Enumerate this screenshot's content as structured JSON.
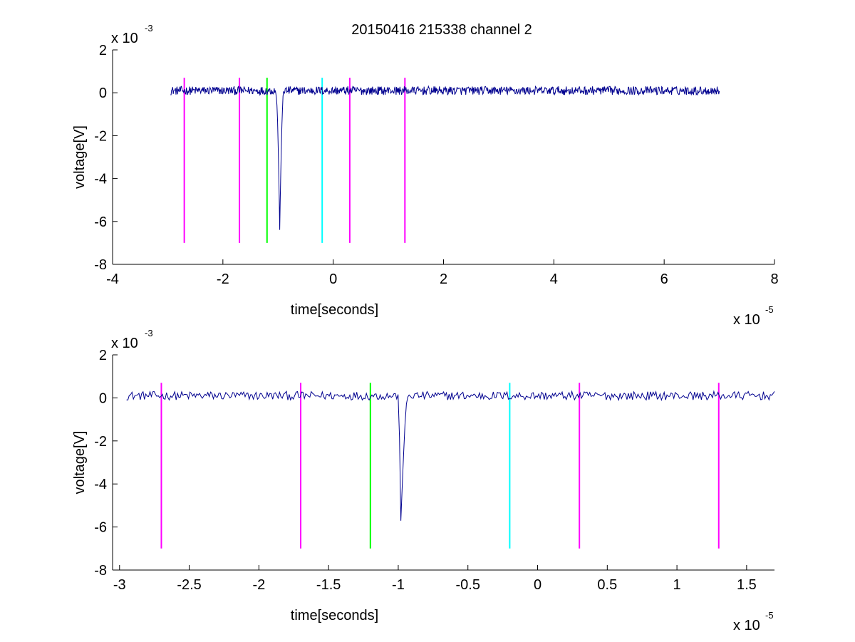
{
  "figure": {
    "title": "20150416 215338 channel 2"
  },
  "colors": {
    "signal": "#00008f",
    "magenta": "#ff00ff",
    "green": "#00ff00",
    "cyan": "#00ffff"
  },
  "chart_data": [
    {
      "type": "line",
      "title": "20150416 215338 channel 2",
      "xlabel": "time[seconds]",
      "ylabel": "voltage[V]",
      "x_exponent": "x 10",
      "x_exponent_power": "-5",
      "y_exponent": "x 10",
      "y_exponent_power": "-3",
      "xlim": [
        -4,
        8
      ],
      "ylim": [
        -8,
        2
      ],
      "xticks": [
        -4,
        -2,
        0,
        2,
        4,
        6,
        8
      ],
      "xtick_labels": [
        "-4",
        "-2",
        "0",
        "2",
        "4",
        "6",
        "8"
      ],
      "yticks": [
        2,
        0,
        -2,
        -4,
        -6,
        -8
      ],
      "ytick_labels": [
        "2",
        "0",
        "-2",
        "-4",
        "-6",
        "-8"
      ],
      "grid": false,
      "series": [
        {
          "color": "#00008f",
          "baseline": 0.1,
          "noise_amplitude": 0.2,
          "x_range": [
            -2.95,
            7.0
          ],
          "spike": {
            "start": -1.05,
            "min_x": -0.97,
            "min_y": -6.4,
            "end": -0.9
          }
        }
      ],
      "vertical_markers": [
        {
          "x": -2.7,
          "y_from": -7,
          "y_to": 0.7,
          "color": "#ff00ff"
        },
        {
          "x": -1.7,
          "y_from": -7,
          "y_to": 0.7,
          "color": "#ff00ff"
        },
        {
          "x": -1.2,
          "y_from": -7,
          "y_to": 0.7,
          "color": "#00ff00"
        },
        {
          "x": -0.2,
          "y_from": -7,
          "y_to": 0.7,
          "color": "#00ffff"
        },
        {
          "x": 0.3,
          "y_from": -7,
          "y_to": 0.7,
          "color": "#ff00ff"
        },
        {
          "x": 1.3,
          "y_from": -7,
          "y_to": 0.7,
          "color": "#ff00ff"
        }
      ]
    },
    {
      "type": "line",
      "title": "",
      "xlabel": "time[seconds]",
      "ylabel": "voltage[V]",
      "x_exponent": "x 10",
      "x_exponent_power": "-5",
      "y_exponent": "x 10",
      "y_exponent_power": "-3",
      "xlim": [
        -3.05,
        1.7
      ],
      "ylim": [
        -8,
        2
      ],
      "xticks": [
        -3,
        -2.5,
        -2,
        -1.5,
        -1,
        -0.5,
        0,
        0.5,
        1,
        1.5
      ],
      "xtick_labels": [
        "-3",
        "-2.5",
        "-2",
        "-1.5",
        "-1",
        "-0.5",
        "0",
        "0.5",
        "1",
        "1.5"
      ],
      "yticks": [
        2,
        0,
        -2,
        -4,
        -6,
        -8
      ],
      "ytick_labels": [
        "2",
        "0",
        "-2",
        "-4",
        "-6",
        "-8"
      ],
      "grid": false,
      "series": [
        {
          "color": "#00008f",
          "baseline": 0.1,
          "noise_amplitude": 0.2,
          "x_range": [
            -2.95,
            1.7
          ],
          "spike": {
            "start": -1.0,
            "min_x": -0.985,
            "min_y": -6.4,
            "end": -0.93
          }
        }
      ],
      "vertical_markers": [
        {
          "x": -2.7,
          "y_from": -7,
          "y_to": 0.7,
          "color": "#ff00ff"
        },
        {
          "x": -1.7,
          "y_from": -7,
          "y_to": 0.7,
          "color": "#ff00ff"
        },
        {
          "x": -1.2,
          "y_from": -7,
          "y_to": 0.7,
          "color": "#00ff00"
        },
        {
          "x": -0.2,
          "y_from": -7,
          "y_to": 0.7,
          "color": "#00ffff"
        },
        {
          "x": 0.3,
          "y_from": -7,
          "y_to": 0.7,
          "color": "#ff00ff"
        },
        {
          "x": 1.3,
          "y_from": -7,
          "y_to": 0.7,
          "color": "#ff00ff"
        }
      ]
    }
  ]
}
